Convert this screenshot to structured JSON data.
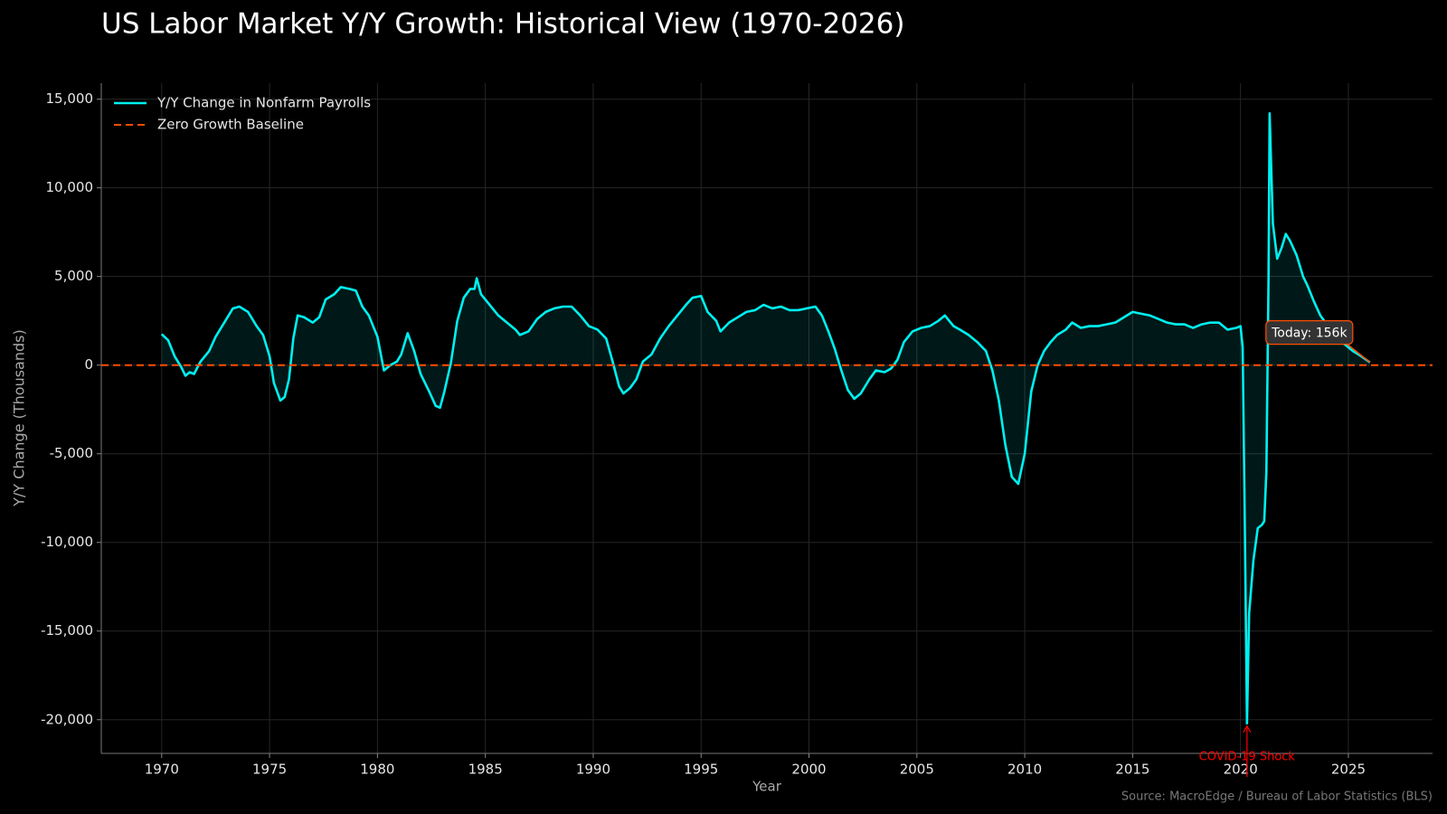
{
  "chart_data": {
    "type": "line",
    "title": "US Labor Market Y/Y Growth: Historical View (1970-2026)",
    "x_label": "Year",
    "y_label": "Y/Y Change (Thousands)",
    "source": "Source: MacroEdge / Bureau of Labor Statistics (BLS)",
    "xlim": [
      1967.2,
      2028.9
    ],
    "ylim": [
      -21900,
      15900
    ],
    "xticks": [
      1970,
      1975,
      1980,
      1985,
      1990,
      1995,
      2000,
      2005,
      2010,
      2015,
      2020,
      2025
    ],
    "yticks": [
      {
        "value": -20000,
        "label": "-20,000"
      },
      {
        "value": -15000,
        "label": "-15,000"
      },
      {
        "value": -10000,
        "label": "-10,000"
      },
      {
        "value": -5000,
        "label": "-5,000"
      },
      0,
      {
        "value": 5000,
        "label": "5,000"
      },
      {
        "value": 10000,
        "label": "10,000"
      },
      {
        "value": 15000,
        "label": "15,000"
      }
    ],
    "grid": true,
    "legend": "upper left",
    "fill": true,
    "x": [
      1970.0,
      1970.3,
      1970.6,
      1970.9,
      1971.1,
      1971.3,
      1971.5,
      1971.8,
      1972.2,
      1972.5,
      1972.9,
      1973.3,
      1973.6,
      1974.0,
      1974.4,
      1974.7,
      1975.0,
      1975.2,
      1975.5,
      1975.7,
      1975.9,
      1976.1,
      1976.3,
      1976.6,
      1977.0,
      1977.3,
      1977.6,
      1978.0,
      1978.3,
      1978.7,
      1979.0,
      1979.3,
      1979.6,
      1980.0,
      1980.3,
      1980.6,
      1980.9,
      1981.1,
      1981.4,
      1981.7,
      1982.0,
      1982.4,
      1982.7,
      1982.9,
      1983.1,
      1983.4,
      1983.7,
      1984.0,
      1984.3,
      1984.5,
      1984.6,
      1984.8,
      1985.2,
      1985.6,
      1986.0,
      1986.4,
      1986.6,
      1987.0,
      1987.4,
      1987.8,
      1988.2,
      1988.6,
      1989.0,
      1989.4,
      1989.8,
      1990.2,
      1990.6,
      1990.9,
      1991.2,
      1991.4,
      1991.7,
      1992.0,
      1992.3,
      1992.7,
      1993.1,
      1993.5,
      1993.9,
      1994.3,
      1994.6,
      1995.0,
      1995.3,
      1995.7,
      1995.9,
      1996.3,
      1996.7,
      1997.1,
      1997.5,
      1997.9,
      1998.3,
      1998.7,
      1999.1,
      1999.5,
      1999.9,
      2000.3,
      2000.6,
      2000.9,
      2001.2,
      2001.5,
      2001.8,
      2002.1,
      2002.4,
      2002.8,
      2003.1,
      2003.5,
      2003.8,
      2004.1,
      2004.4,
      2004.8,
      2005.2,
      2005.6,
      2006.0,
      2006.3,
      2006.7,
      2007.0,
      2007.4,
      2007.8,
      2008.2,
      2008.5,
      2008.8,
      2009.1,
      2009.4,
      2009.7,
      2010.0,
      2010.3,
      2010.6,
      2010.9,
      2011.2,
      2011.5,
      2011.9,
      2012.2,
      2012.6,
      2013.0,
      2013.4,
      2013.8,
      2014.2,
      2014.6,
      2015.0,
      2015.4,
      2015.8,
      2016.2,
      2016.6,
      2017.0,
      2017.4,
      2017.8,
      2018.2,
      2018.6,
      2019.0,
      2019.4,
      2019.8,
      2020.0,
      2020.1,
      2020.2,
      2020.3,
      2020.4,
      2020.6,
      2020.8,
      2021.0,
      2021.1,
      2021.2,
      2021.3,
      2021.35,
      2021.5,
      2021.7,
      2021.9,
      2022.1,
      2022.3,
      2022.6,
      2022.9,
      2023.1,
      2023.4,
      2023.7,
      2024.0,
      2024.4,
      2024.8,
      2025.2,
      2025.6,
      2026.0
    ],
    "series": [
      {
        "name": "Y/Y Change in Nonfarm Payrolls",
        "color": "#00f0f0",
        "values": [
          1750,
          1400,
          500,
          -100,
          -600,
          -400,
          -500,
          200,
          800,
          1600,
          2400,
          3200,
          3300,
          3000,
          2200,
          1700,
          500,
          -1000,
          -2000,
          -1800,
          -800,
          1500,
          2800,
          2700,
          2400,
          2700,
          3700,
          4000,
          4400,
          4300,
          4200,
          3300,
          2800,
          1600,
          -300,
          0,
          200,
          600,
          1800,
          800,
          -500,
          -1500,
          -2300,
          -2400,
          -1500,
          100,
          2500,
          3800,
          4300,
          4300,
          4900,
          4000,
          3400,
          2800,
          2400,
          2000,
          1700,
          1900,
          2600,
          3000,
          3200,
          3300,
          3300,
          2800,
          2200,
          2000,
          1500,
          200,
          -1200,
          -1600,
          -1300,
          -800,
          200,
          600,
          1500,
          2200,
          2800,
          3400,
          3800,
          3900,
          3000,
          2500,
          1900,
          2400,
          2700,
          3000,
          3100,
          3400,
          3200,
          3300,
          3100,
          3100,
          3200,
          3300,
          2800,
          1900,
          900,
          -300,
          -1400,
          -1900,
          -1600,
          -800,
          -300,
          -400,
          -200,
          300,
          1300,
          1900,
          2100,
          2200,
          2500,
          2800,
          2200,
          2000,
          1700,
          1300,
          800,
          -300,
          -2000,
          -4500,
          -6300,
          -6700,
          -5000,
          -1500,
          0,
          800,
          1300,
          1700,
          2000,
          2400,
          2100,
          2200,
          2200,
          2300,
          2400,
          2700,
          3000,
          2900,
          2800,
          2600,
          2400,
          2300,
          2300,
          2100,
          2300,
          2400,
          2400,
          2000,
          2100,
          2200,
          1000,
          -9000,
          -20200,
          -14000,
          -11000,
          -9200,
          -9000,
          -8800,
          -6000,
          5000,
          14200,
          8000,
          6000,
          6600,
          7400,
          7000,
          6200,
          5000,
          4500,
          3600,
          2800,
          2300,
          1800,
          1200,
          800,
          500,
          156
        ]
      }
    ],
    "reference_lines": [
      {
        "name": "Zero Growth Baseline",
        "value": 0,
        "color": "#ff4d00"
      }
    ],
    "annotations": [
      {
        "text": "Today: 156k",
        "x": 2026.0,
        "y": 156,
        "color": "#ffffff"
      },
      {
        "text": "COVID-19 Shock",
        "x": 2020.3,
        "y": -20200,
        "color": "#ff0000"
      }
    ]
  }
}
